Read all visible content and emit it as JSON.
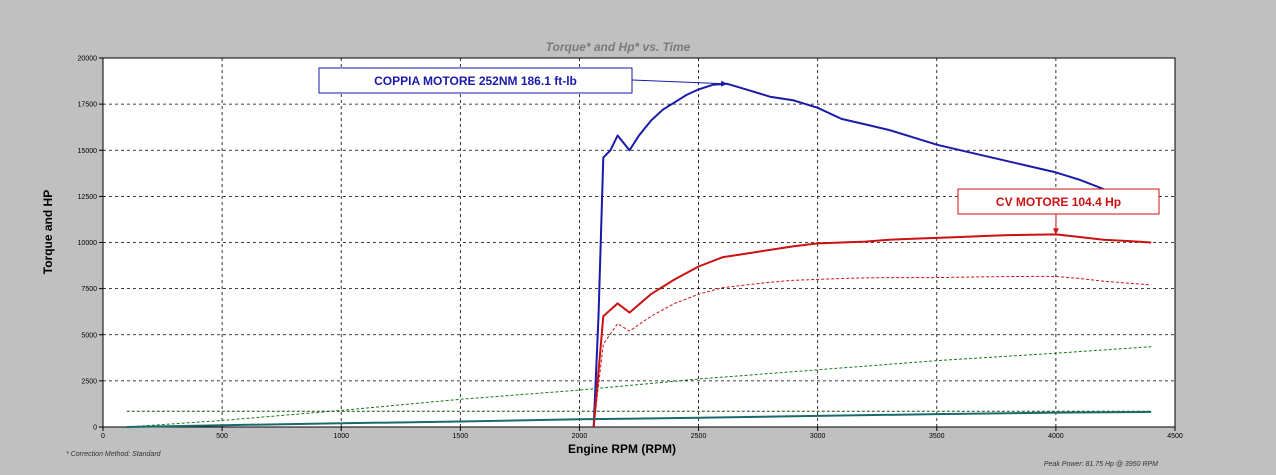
{
  "chart_data": {
    "type": "line",
    "title": "Torque* and Hp* vs. Time",
    "xlabel": "Engine RPM (RPM)",
    "ylabel": "Torque and HP",
    "xlim": [
      0,
      4500
    ],
    "ylim": [
      0,
      20000
    ],
    "x_ticks": [
      0,
      500,
      1000,
      1500,
      2000,
      2500,
      3000,
      3500,
      4000,
      4500
    ],
    "y_ticks": [
      0,
      2500,
      5000,
      7500,
      10000,
      12500,
      15000,
      17500,
      20000
    ],
    "grid": true,
    "background": "#ffffff",
    "series": [
      {
        "color": "#1a1aaa",
        "style": "solid",
        "width": 2,
        "points": [
          [
            2060,
            0
          ],
          [
            2080,
            6000
          ],
          [
            2100,
            14600
          ],
          [
            2130,
            15000
          ],
          [
            2160,
            15800
          ],
          [
            2210,
            15000
          ],
          [
            2250,
            15800
          ],
          [
            2300,
            16600
          ],
          [
            2350,
            17200
          ],
          [
            2400,
            17600
          ],
          [
            2450,
            18000
          ],
          [
            2500,
            18300
          ],
          [
            2560,
            18550
          ],
          [
            2620,
            18600
          ],
          [
            2700,
            18300
          ],
          [
            2800,
            17900
          ],
          [
            2900,
            17700
          ],
          [
            3000,
            17300
          ],
          [
            3100,
            16700
          ],
          [
            3200,
            16400
          ],
          [
            3300,
            16100
          ],
          [
            3400,
            15700
          ],
          [
            3500,
            15300
          ],
          [
            3600,
            15000
          ],
          [
            3700,
            14700
          ],
          [
            3800,
            14400
          ],
          [
            3900,
            14100
          ],
          [
            4000,
            13800
          ],
          [
            4100,
            13400
          ],
          [
            4200,
            12900
          ]
        ]
      },
      {
        "color": "#cc1111",
        "style": "solid",
        "width": 2,
        "points": [
          [
            2060,
            0
          ],
          [
            2100,
            6000
          ],
          [
            2160,
            6700
          ],
          [
            2210,
            6200
          ],
          [
            2300,
            7200
          ],
          [
            2400,
            8000
          ],
          [
            2500,
            8700
          ],
          [
            2600,
            9200
          ],
          [
            2700,
            9400
          ],
          [
            2800,
            9600
          ],
          [
            2900,
            9800
          ],
          [
            3000,
            9950
          ],
          [
            3100,
            10000
          ],
          [
            3200,
            10050
          ],
          [
            3300,
            10150
          ],
          [
            3400,
            10200
          ],
          [
            3500,
            10250
          ],
          [
            3600,
            10300
          ],
          [
            3700,
            10350
          ],
          [
            3800,
            10400
          ],
          [
            3900,
            10420
          ],
          [
            4000,
            10440
          ],
          [
            4100,
            10300
          ],
          [
            4200,
            10150
          ],
          [
            4300,
            10080
          ],
          [
            4400,
            10000
          ]
        ]
      },
      {
        "color": "#cc1111",
        "style": "dashed",
        "width": 1,
        "points": [
          [
            2060,
            0
          ],
          [
            2100,
            4500
          ],
          [
            2160,
            5600
          ],
          [
            2210,
            5200
          ],
          [
            2300,
            6000
          ],
          [
            2400,
            6700
          ],
          [
            2500,
            7200
          ],
          [
            2600,
            7550
          ],
          [
            2700,
            7700
          ],
          [
            2800,
            7850
          ],
          [
            2900,
            7950
          ],
          [
            3000,
            8000
          ],
          [
            3100,
            8050
          ],
          [
            3200,
            8080
          ],
          [
            3300,
            8100
          ],
          [
            3400,
            8100
          ],
          [
            3500,
            8100
          ],
          [
            3600,
            8120
          ],
          [
            3700,
            8140
          ],
          [
            3800,
            8150
          ],
          [
            3900,
            8160
          ],
          [
            4000,
            8160
          ],
          [
            4100,
            8050
          ],
          [
            4200,
            7900
          ],
          [
            4300,
            7800
          ],
          [
            4400,
            7700
          ]
        ]
      },
      {
        "color": "#1a7a1a",
        "style": "dashed",
        "width": 1,
        "points": [
          [
            100,
            0
          ],
          [
            500,
            350
          ],
          [
            1000,
            900
          ],
          [
            1500,
            1500
          ],
          [
            2000,
            2000
          ],
          [
            2500,
            2600
          ],
          [
            3000,
            3100
          ],
          [
            3500,
            3600
          ],
          [
            4000,
            4000
          ],
          [
            4400,
            4350
          ]
        ]
      },
      {
        "color": "#1a4a1a",
        "style": "dashed",
        "width": 1,
        "points": [
          [
            100,
            850
          ],
          [
            4400,
            850
          ]
        ]
      },
      {
        "color": "#1a6a6a",
        "style": "solid",
        "width": 2,
        "points": [
          [
            100,
            0
          ],
          [
            500,
            100
          ],
          [
            1000,
            200
          ],
          [
            1500,
            300
          ],
          [
            2000,
            420
          ],
          [
            2500,
            500
          ],
          [
            3000,
            600
          ],
          [
            3500,
            700
          ],
          [
            4000,
            780
          ],
          [
            4400,
            820
          ]
        ]
      }
    ],
    "annotations": [
      {
        "text": "COPPIA MOTORE 252NM 186.1 ft-lb",
        "color": "#1a1aaa",
        "target": [
          2620,
          18600
        ]
      },
      {
        "text": "CV MOTORE 104.4 Hp",
        "color": "#cc1111",
        "target": [
          4000,
          10440
        ]
      }
    ],
    "footnote_left": "* Correction Method: Standard",
    "footnote_right": "Peak Power: 81.75 Hp @ 3950 RPM"
  }
}
